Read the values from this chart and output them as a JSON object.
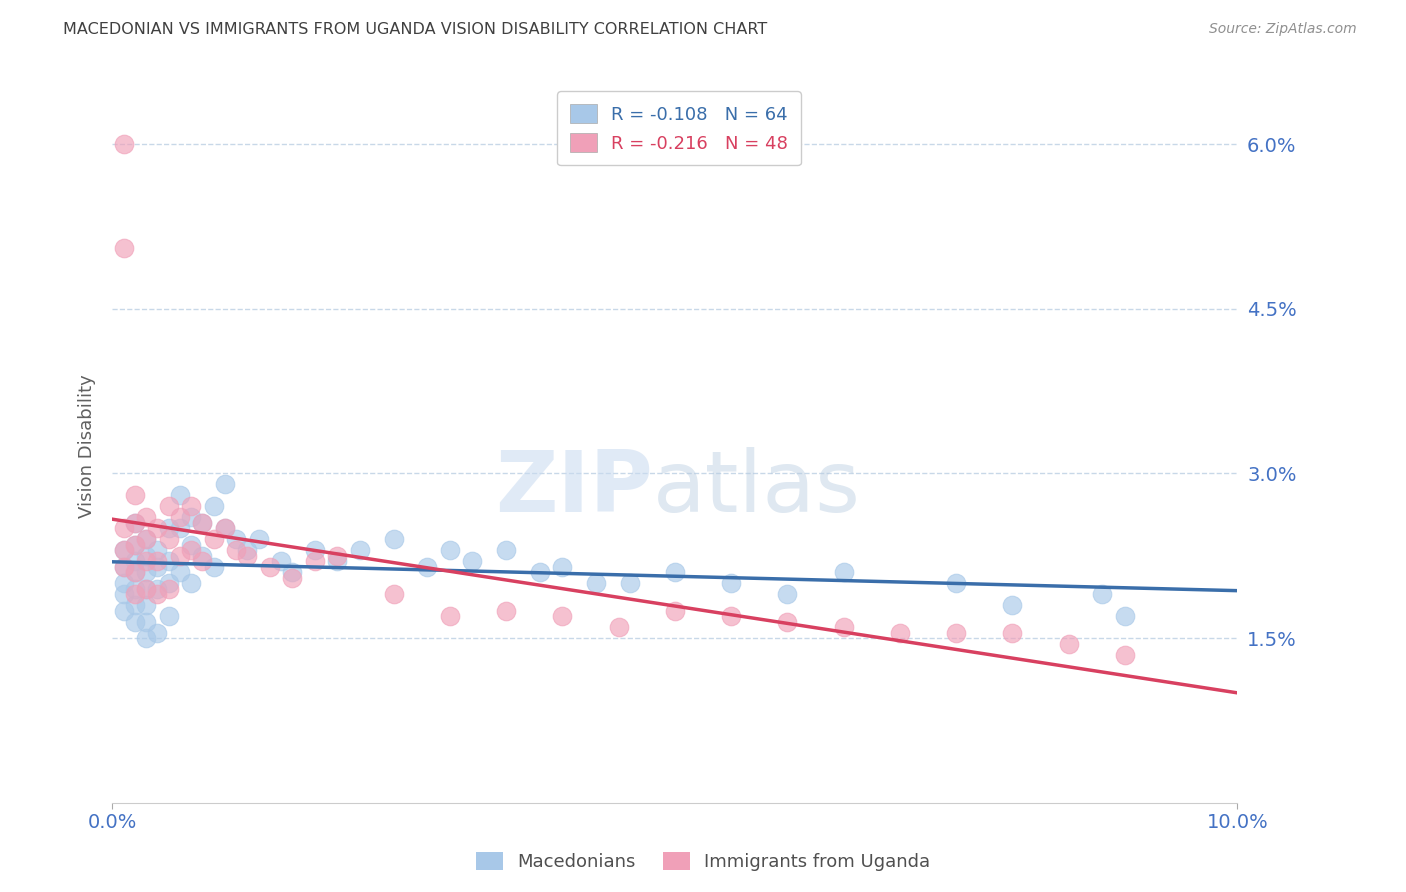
{
  "title": "MACEDONIAN VS IMMIGRANTS FROM UGANDA VISION DISABILITY CORRELATION CHART",
  "source": "Source: ZipAtlas.com",
  "ylabel": "Vision Disability",
  "watermark_zip": "ZIP",
  "watermark_atlas": "atlas",
  "xlim": [
    0.0,
    0.1
  ],
  "ylim": [
    0.0,
    0.065
  ],
  "yticks": [
    0.015,
    0.03,
    0.045,
    0.06
  ],
  "ytick_labels": [
    "1.5%",
    "3.0%",
    "4.5%",
    "6.0%"
  ],
  "xtick_labels": [
    "0.0%",
    "10.0%"
  ],
  "macedonians_R": -0.108,
  "macedonians_N": 64,
  "uganda_R": -0.216,
  "uganda_N": 48,
  "blue_color": "#a8c8e8",
  "pink_color": "#f0a0b8",
  "blue_line_color": "#3a6eaa",
  "pink_line_color": "#d84060",
  "title_color": "#404040",
  "axis_label_color": "#4472c4",
  "background_color": "#ffffff",
  "grid_color": "#c8d8e8",
  "macedonians_x": [
    0.001,
    0.001,
    0.001,
    0.001,
    0.001,
    0.002,
    0.002,
    0.002,
    0.002,
    0.002,
    0.002,
    0.002,
    0.003,
    0.003,
    0.003,
    0.003,
    0.003,
    0.003,
    0.003,
    0.004,
    0.004,
    0.004,
    0.004,
    0.005,
    0.005,
    0.005,
    0.005,
    0.006,
    0.006,
    0.006,
    0.007,
    0.007,
    0.007,
    0.008,
    0.008,
    0.009,
    0.009,
    0.01,
    0.01,
    0.011,
    0.012,
    0.013,
    0.015,
    0.016,
    0.018,
    0.02,
    0.022,
    0.025,
    0.028,
    0.03,
    0.032,
    0.035,
    0.038,
    0.04,
    0.043,
    0.046,
    0.05,
    0.055,
    0.06,
    0.065,
    0.075,
    0.08,
    0.088,
    0.09
  ],
  "macedonians_y": [
    0.023,
    0.0215,
    0.02,
    0.019,
    0.0175,
    0.0255,
    0.0235,
    0.022,
    0.021,
    0.0195,
    0.018,
    0.0165,
    0.024,
    0.0225,
    0.021,
    0.0195,
    0.018,
    0.0165,
    0.015,
    0.023,
    0.0215,
    0.0195,
    0.0155,
    0.025,
    0.022,
    0.02,
    0.017,
    0.028,
    0.025,
    0.021,
    0.026,
    0.0235,
    0.02,
    0.0255,
    0.0225,
    0.027,
    0.0215,
    0.029,
    0.025,
    0.024,
    0.023,
    0.024,
    0.022,
    0.021,
    0.023,
    0.022,
    0.023,
    0.024,
    0.0215,
    0.023,
    0.022,
    0.023,
    0.021,
    0.0215,
    0.02,
    0.02,
    0.021,
    0.02,
    0.019,
    0.021,
    0.02,
    0.018,
    0.019,
    0.017
  ],
  "uganda_x": [
    0.001,
    0.001,
    0.001,
    0.001,
    0.001,
    0.002,
    0.002,
    0.002,
    0.002,
    0.002,
    0.003,
    0.003,
    0.003,
    0.003,
    0.004,
    0.004,
    0.004,
    0.005,
    0.005,
    0.005,
    0.006,
    0.006,
    0.007,
    0.007,
    0.008,
    0.008,
    0.009,
    0.01,
    0.011,
    0.012,
    0.014,
    0.016,
    0.018,
    0.02,
    0.025,
    0.03,
    0.035,
    0.04,
    0.045,
    0.05,
    0.055,
    0.06,
    0.065,
    0.07,
    0.075,
    0.08,
    0.085,
    0.09
  ],
  "uganda_y": [
    0.06,
    0.0505,
    0.025,
    0.023,
    0.0215,
    0.028,
    0.0255,
    0.0235,
    0.021,
    0.019,
    0.026,
    0.024,
    0.022,
    0.0195,
    0.025,
    0.022,
    0.019,
    0.027,
    0.024,
    0.0195,
    0.026,
    0.0225,
    0.027,
    0.023,
    0.0255,
    0.022,
    0.024,
    0.025,
    0.023,
    0.0225,
    0.0215,
    0.0205,
    0.022,
    0.0225,
    0.019,
    0.017,
    0.0175,
    0.017,
    0.016,
    0.0175,
    0.017,
    0.0165,
    0.016,
    0.0155,
    0.0155,
    0.0155,
    0.0145,
    0.0135
  ]
}
